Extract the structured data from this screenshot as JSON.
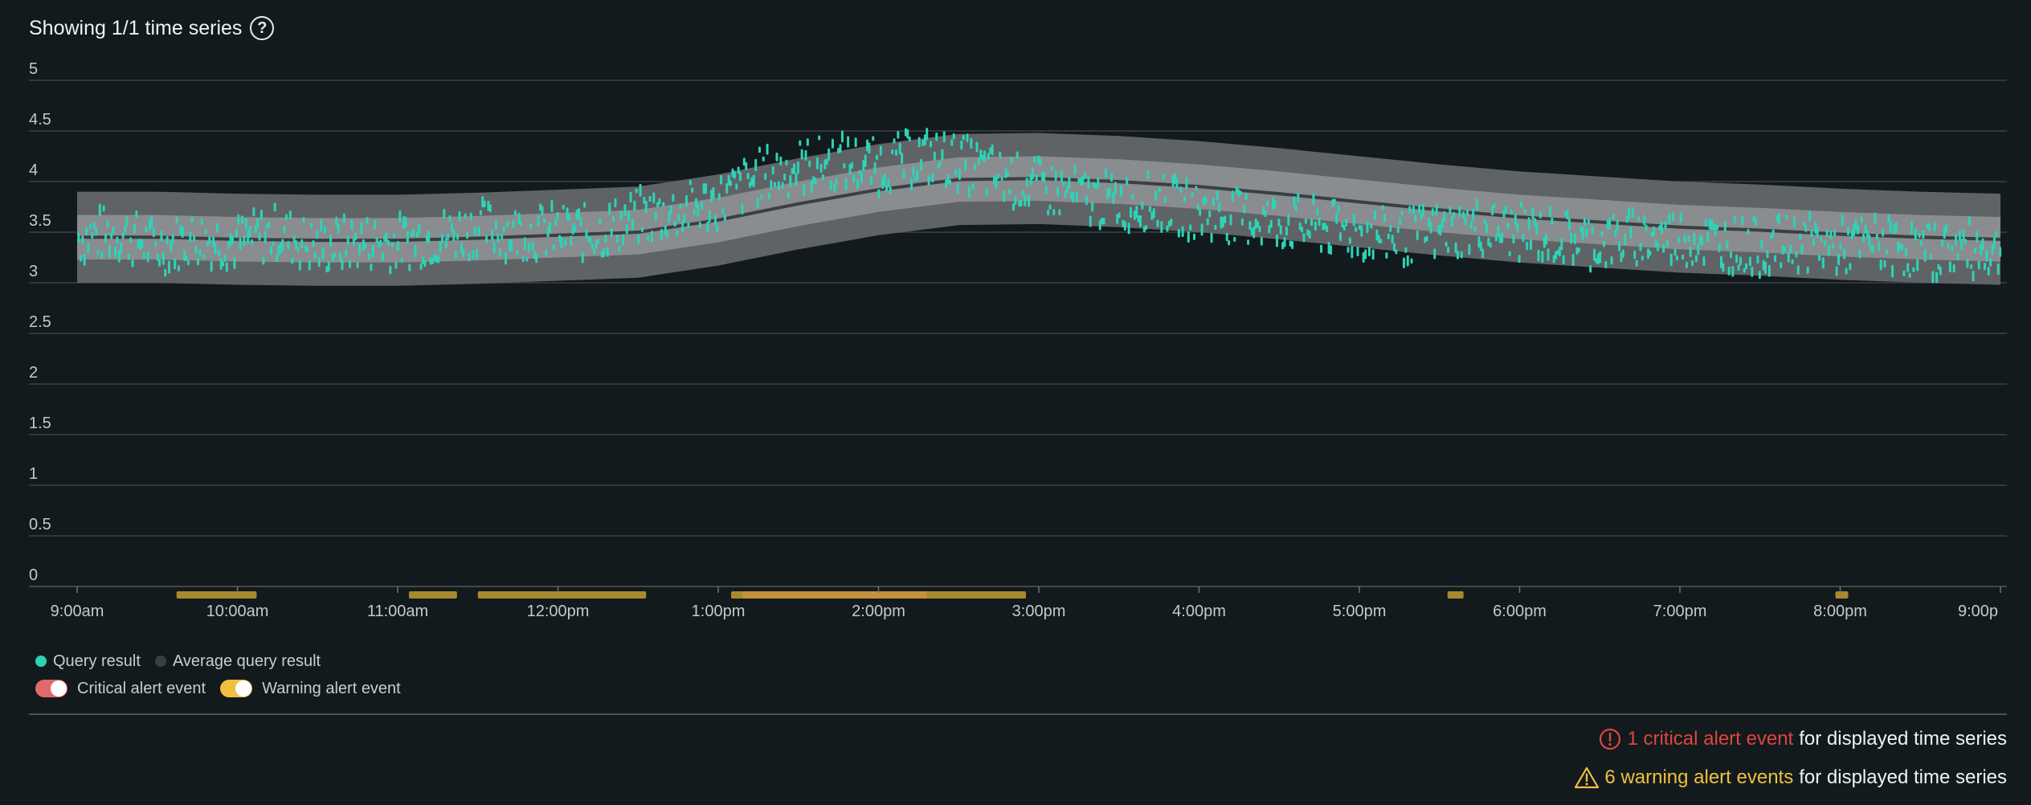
{
  "header": {
    "title": "Showing 1/1 time series",
    "help_icon": "question-circle-icon"
  },
  "chart_data": {
    "type": "line",
    "y_ticks": [
      "0",
      "0.5",
      "1",
      "1.5",
      "2",
      "2.5",
      "3",
      "3.5",
      "4",
      "4.5",
      "5"
    ],
    "ylim": [
      0,
      5
    ],
    "x_ticks": [
      "9:00am",
      "10:00am",
      "11:00am",
      "12:00pm",
      "1:00pm",
      "2:00pm",
      "3:00pm",
      "4:00pm",
      "5:00pm",
      "6:00pm",
      "7:00pm",
      "8:00pm",
      "9:00p"
    ],
    "x_range_hours": [
      9,
      21
    ],
    "series": [
      {
        "name": "Query result",
        "color": "#2ed3b7",
        "style": "scatter-dashes",
        "x": [
          9.0,
          9.25,
          9.5,
          9.75,
          10.0,
          10.25,
          10.5,
          10.75,
          11.0,
          11.25,
          11.5,
          11.75,
          12.0,
          12.25,
          12.5,
          12.75,
          13.0,
          13.25,
          13.5,
          13.75,
          14.0,
          14.25,
          14.5,
          14.75,
          15.0,
          15.25,
          15.5,
          15.75,
          16.0,
          16.25,
          16.5,
          16.75,
          17.0,
          17.25,
          17.5,
          17.75,
          18.0,
          18.25,
          18.5,
          18.75,
          19.0,
          19.25,
          19.5,
          19.75,
          20.0,
          20.25,
          20.5,
          20.75,
          21.0
        ],
        "values": [
          3.45,
          3.5,
          3.35,
          3.45,
          3.4,
          3.5,
          3.35,
          3.4,
          3.4,
          3.45,
          3.55,
          3.5,
          3.5,
          3.5,
          3.65,
          3.7,
          3.8,
          4.05,
          4.15,
          4.2,
          4.15,
          4.25,
          4.2,
          4.05,
          3.95,
          3.85,
          3.8,
          3.8,
          3.7,
          3.65,
          3.6,
          3.55,
          3.5,
          3.45,
          3.5,
          3.55,
          3.5,
          3.45,
          3.4,
          3.45,
          3.45,
          3.4,
          3.35,
          3.4,
          3.35,
          3.4,
          3.3,
          3.35,
          3.3
        ]
      },
      {
        "name": "Average query result",
        "color": "#3a3f42",
        "x": [
          9.0,
          9.5,
          10.0,
          10.5,
          11.0,
          11.5,
          12.0,
          12.5,
          13.0,
          13.5,
          14.0,
          14.5,
          15.0,
          15.5,
          16.0,
          16.5,
          17.0,
          17.5,
          18.0,
          18.5,
          19.0,
          19.5,
          20.0,
          20.5,
          21.0
        ],
        "values": [
          3.45,
          3.45,
          3.43,
          3.42,
          3.42,
          3.44,
          3.47,
          3.5,
          3.62,
          3.78,
          3.92,
          4.02,
          4.03,
          4.0,
          3.95,
          3.88,
          3.8,
          3.72,
          3.65,
          3.6,
          3.55,
          3.52,
          3.48,
          3.45,
          3.43
        ]
      }
    ],
    "bands": {
      "inner_halfwidth": 0.22,
      "outer_halfwidth": 0.45,
      "inner_color": "#898d90",
      "outer_color": "#5f6366"
    },
    "warning_events": [
      {
        "start": 9.62,
        "end": 10.12
      },
      {
        "start": 11.07,
        "end": 11.37
      },
      {
        "start": 11.5,
        "end": 12.55
      },
      {
        "start": 13.08,
        "end": 14.92
      },
      {
        "start": 17.55,
        "end": 17.65
      },
      {
        "start": 19.97,
        "end": 20.05
      }
    ],
    "critical_events": [
      {
        "start": 13.15,
        "end": 14.3
      }
    ],
    "warning_event_color": "#a88a2c",
    "critical_event_color": "#c4923a"
  },
  "legend": {
    "query_result": "Query result",
    "average_query_result": "Average query result",
    "critical_alert_event": "Critical alert event",
    "warning_alert_event": "Warning alert event",
    "query_color": "#2ed3b7",
    "average_color": "#3a3f42",
    "critical_toggle_color": "#e06a6a",
    "warning_toggle_color": "#f0c040"
  },
  "summary": {
    "critical_count_text": "1 critical alert event",
    "critical_rest": "for displayed time series",
    "critical_color": "#e0453e",
    "critical_icon": "exclamation-circle-icon",
    "warning_count_text": "6 warning alert events",
    "warning_rest": "for displayed time series",
    "warning_color": "#f0c040",
    "warning_icon": "warning-triangle-icon"
  }
}
